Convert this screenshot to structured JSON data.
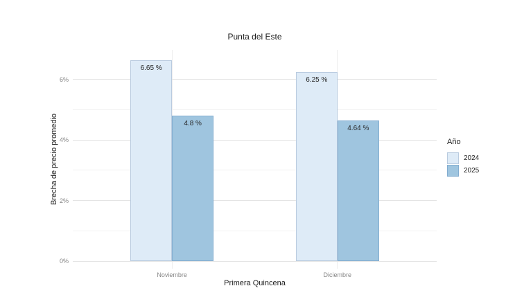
{
  "chart_data": {
    "type": "bar",
    "title": "Punta del Este",
    "xlabel": "Primera Quincena",
    "ylabel": "Brecha de precio promedio",
    "categories": [
      "Noviembre",
      "Diciembre"
    ],
    "series": [
      {
        "name": "2024",
        "values": [
          6.65,
          6.25
        ],
        "value_labels": [
          "6.65 %",
          "6.25 %"
        ],
        "fill": "#deebf7",
        "border": "#b9cbdf"
      },
      {
        "name": "2025",
        "values": [
          4.8,
          4.64
        ],
        "value_labels": [
          "4.8 %",
          "4.64 %"
        ],
        "fill": "#9fc5df",
        "border": "#83add0"
      }
    ],
    "y_major_ticks": [
      0,
      2,
      4,
      6
    ],
    "y_tick_labels": [
      "0%",
      "2%",
      "4%",
      "6%"
    ],
    "y_minor_ticks": [
      1,
      3,
      5
    ],
    "ylim": [
      0,
      7
    ],
    "grid": true,
    "legend_title": "Año",
    "legend_position": "right",
    "colors": {
      "grid_major": "#e4e4e4",
      "grid_minor": "#f1f1f1",
      "axis_text": "#858585",
      "title_text": "#1a1a1a"
    }
  }
}
